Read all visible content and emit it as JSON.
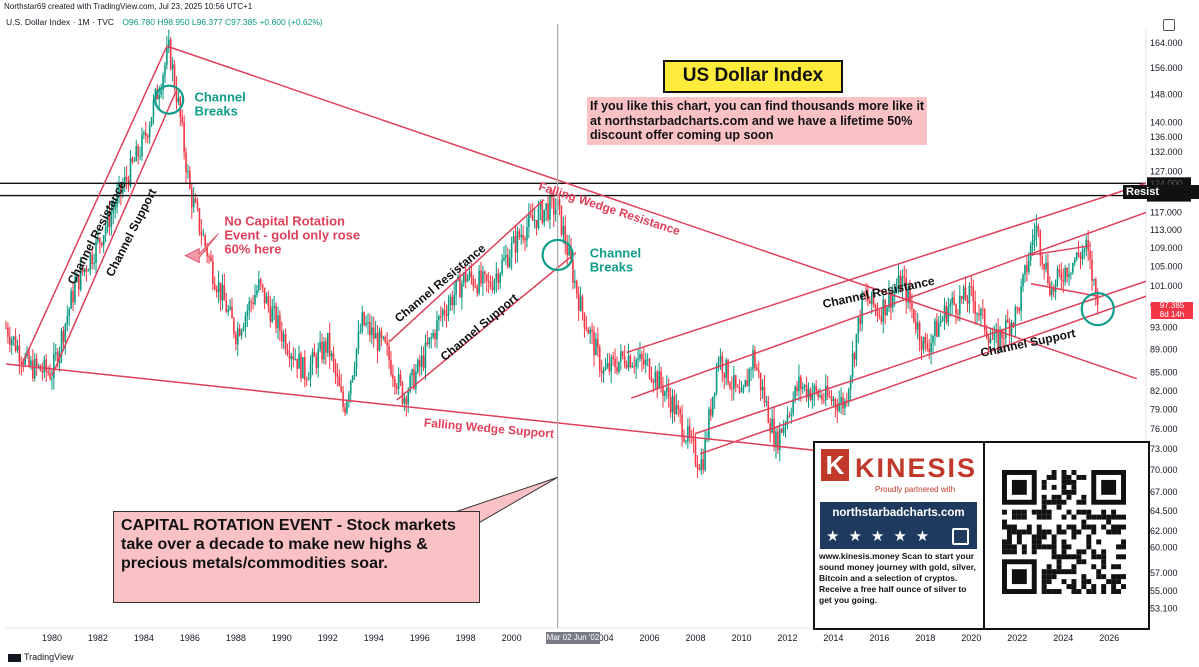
{
  "header": {
    "author_line": "Northstar69 created with TradingView.com, Jul 23, 2025 10:56 UTC+1",
    "symbol": "U.S. Dollar Index · 1M · TVC",
    "ohlc": "O96.780  H98.950  L96.377  C97.385  +0.600 (+0.62%)"
  },
  "footer": {
    "brand": "TradingView"
  },
  "cursor_label": "Mar 02  Jun '02",
  "price_tag": {
    "value": "97.385",
    "countdown": "8d 14h"
  },
  "resist_tag": "Resist",
  "title": "US Dollar Index",
  "promo": "If you like this chart, you can find thousands more like it at northstarbadcharts.com and we have a lifetime 50% discount offer coming up soon",
  "callout": "CAPITAL ROTATION EVENT - Stock markets take over a decade to make new highs & precious metals/commodities soar.",
  "ad": {
    "brand": "KINESIS",
    "logo_letter": "K",
    "tagline": "Proudly partnered with",
    "site": "northstarbadcharts.com",
    "stars": "★★★★★",
    "text": "www.kinesis.money Scan to start your sound money journey with gold, silver, Bitcoin and a selection of cryptos. Receive a free half ounce of silver to get you going."
  },
  "colors": {
    "up": "#089981",
    "down": "#f23645",
    "annotation": "#e0405a",
    "circle": "#0f9d8a",
    "title_bg": "#ffeb3b",
    "callout_bg": "#fbc2c6"
  },
  "chart_data": {
    "type": "candlestick",
    "title": "US Dollar Index",
    "interval": "1M",
    "y_scale": "log",
    "ylim": [
      51.1,
      169
    ],
    "xlim": [
      1978.0,
      2027.6
    ],
    "y_ticks": [
      53.1,
      55.0,
      57.0,
      60.0,
      62.0,
      64.5,
      67.0,
      70.0,
      73.0,
      76.0,
      79.0,
      82.0,
      85.0,
      89.0,
      93.0,
      97.0,
      101.0,
      105.0,
      109.0,
      113.0,
      117.0,
      121.0,
      124.0,
      127.0,
      132.0,
      136.0,
      140.0,
      148.0,
      156.0,
      164.0
    ],
    "y_tick_labels": [
      "53.100",
      "55.000",
      "57.000",
      "60.000",
      "62.000",
      "64.500",
      "67.000",
      "70.000",
      "73.000",
      "76.000",
      "79.000",
      "82.000",
      "85.000",
      "89.000",
      "93.000",
      "97.000",
      "101.000",
      "105.000",
      "109.000",
      "113.000",
      "117.000",
      "121.000",
      "124.000",
      "127.000",
      "132.000",
      "136.000",
      "140.000",
      "148.000",
      "156.000",
      "164.000"
    ],
    "x_ticks": [
      1980,
      1982,
      1984,
      1986,
      1988,
      1990,
      1992,
      1994,
      1996,
      1998,
      2000,
      2002,
      2004,
      2006,
      2008,
      2010,
      2012,
      2014,
      2016,
      2018,
      2020,
      2022,
      2024,
      2026
    ],
    "x_tick_labels": [
      "1980",
      "1982",
      "1984",
      "1986",
      "1988",
      "1990",
      "1992",
      "1994",
      "1996",
      "1998",
      "2000",
      "2002",
      "2004",
      "2006",
      "2008",
      "2010",
      "2012",
      "2014",
      "2016",
      "2018",
      "2020",
      "2022",
      "2024",
      "2026"
    ],
    "price_path": [
      [
        1978.0,
        93
      ],
      [
        1979.0,
        86
      ],
      [
        1980.0,
        85
      ],
      [
        1981.0,
        101
      ],
      [
        1982.0,
        110
      ],
      [
        1983.0,
        122
      ],
      [
        1984.0,
        135
      ],
      [
        1985.1,
        162
      ],
      [
        1985.5,
        145
      ],
      [
        1986.0,
        122
      ],
      [
        1987.0,
        104
      ],
      [
        1988.0,
        92
      ],
      [
        1989.0,
        101
      ],
      [
        1990.0,
        92
      ],
      [
        1991.0,
        85
      ],
      [
        1992.0,
        90
      ],
      [
        1992.7,
        79
      ],
      [
        1993.5,
        94
      ],
      [
        1994.5,
        89
      ],
      [
        1995.3,
        81
      ],
      [
        1996.0,
        86
      ],
      [
        1997.0,
        96
      ],
      [
        1998.0,
        103
      ],
      [
        1999.0,
        101
      ],
      [
        2000.5,
        113
      ],
      [
        2001.5,
        118
      ],
      [
        2002.0,
        118
      ],
      [
        2003.0,
        97
      ],
      [
        2004.0,
        85
      ],
      [
        2005.0,
        88
      ],
      [
        2006.0,
        86
      ],
      [
        2007.0,
        80
      ],
      [
        2008.0,
        72
      ],
      [
        2008.3,
        71
      ],
      [
        2009.0,
        88
      ],
      [
        2010.0,
        80
      ],
      [
        2010.5,
        88
      ],
      [
        2011.5,
        74
      ],
      [
        2012.5,
        83
      ],
      [
        2013.5,
        81
      ],
      [
        2014.5,
        80
      ],
      [
        2015.3,
        99
      ],
      [
        2016.0,
        96
      ],
      [
        2017.0,
        102
      ],
      [
        2018.0,
        89
      ],
      [
        2019.0,
        97
      ],
      [
        2020.0,
        99
      ],
      [
        2021.0,
        90
      ],
      [
        2022.0,
        96
      ],
      [
        2022.8,
        114
      ],
      [
        2023.5,
        100
      ],
      [
        2024.0,
        104
      ],
      [
        2025.0,
        109
      ],
      [
        2025.5,
        97.385
      ]
    ],
    "trendlines": [
      {
        "label": "Channel Resistance",
        "from": [
          1978.7,
          86.5
        ],
        "to": [
          1985.0,
          163
        ]
      },
      {
        "label": "Channel Support",
        "from": [
          1980.0,
          84.5
        ],
        "to": [
          1985.4,
          149
        ]
      },
      {
        "label": "",
        "from": [
          1985.0,
          163
        ],
        "to": [
          2027.2,
          84
        ]
      },
      {
        "label": "Falling Wedge Support",
        "from": [
          1978.0,
          86.5
        ],
        "to": [
          2024.2,
          69.0
        ]
      },
      {
        "label": "Channel Resistance",
        "from": [
          1994.7,
          90.5
        ],
        "to": [
          2001.4,
          120
        ]
      },
      {
        "label": "Channel Support",
        "from": [
          1995.0,
          80.5
        ],
        "to": [
          2002.8,
          108
        ]
      },
      {
        "label": "Channel Resistance",
        "from": [
          2005.0,
          88.5
        ],
        "to": [
          2027.6,
          124
        ]
      },
      {
        "label": "",
        "from": [
          2005.2,
          80.8
        ],
        "to": [
          2027.6,
          117
        ]
      },
      {
        "label": "",
        "from": [
          2008.0,
          75.3
        ],
        "to": [
          2027.6,
          102
        ]
      },
      {
        "label": "Channel Support",
        "from": [
          2008.2,
          72.3
        ],
        "to": [
          2027.6,
          99
        ]
      },
      {
        "label": "",
        "from": [
          2022.6,
          107.5
        ],
        "to": [
          2025.2,
          109.5
        ]
      },
      {
        "label": "",
        "from": [
          2022.6,
          101.5
        ],
        "to": [
          2025.5,
          99
        ]
      }
    ],
    "horizontal_levels": [
      {
        "label": "124.000",
        "value": 124.0
      },
      {
        "label": "121.000",
        "value": 121.0
      }
    ],
    "annotations": [
      {
        "text": "Channel Resistance",
        "x": 1982.1,
        "y": 112,
        "rotate": -63
      },
      {
        "text": "Channel Support",
        "x": 1983.6,
        "y": 112,
        "rotate": -63
      },
      {
        "text": "Channel Breaks",
        "x": 1986.2,
        "y": 146
      },
      {
        "text": "No Capital Rotation Event - gold only rose 60% here",
        "x": 1987.5,
        "y": 114
      },
      {
        "text": "Channel Resistance",
        "x": 1997.0,
        "y": 101,
        "rotate": -40
      },
      {
        "text": "Channel Support",
        "x": 1998.7,
        "y": 92.5,
        "rotate": -40
      },
      {
        "text": "Channel Breaks",
        "x": 2003.4,
        "y": 107
      },
      {
        "text": "Falling Wedge Resistance",
        "x": 2004.2,
        "y": 117,
        "rotate": 18
      },
      {
        "text": "Falling Wedge Support",
        "x": 1999.0,
        "y": 75.5,
        "rotate": 5
      },
      {
        "text": "Channel Resistance",
        "x": 2016.0,
        "y": 99,
        "rotate": -12
      },
      {
        "text": "Channel Support",
        "x": 2022.5,
        "y": 89.5,
        "rotate": -12
      }
    ],
    "last_price": 97.385
  }
}
